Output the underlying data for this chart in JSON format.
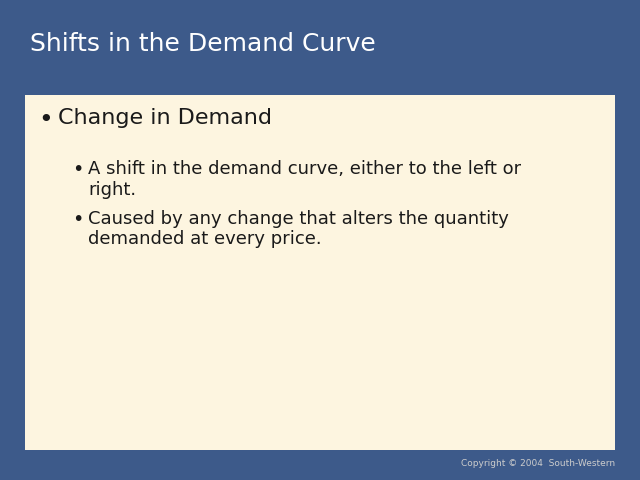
{
  "title": "Shifts in the Demand Curve",
  "title_color": "#ffffff",
  "title_fontsize": 18,
  "title_font": "sans-serif",
  "background_color": "#3d5a8a",
  "content_bg_color": "#fdf5e0",
  "text_color": "#1a1a1a",
  "bullet1_text": "Change in Demand",
  "bullet1_fontsize": 16,
  "sub_bullet1_line1": "A shift in the demand curve, either to the left or",
  "sub_bullet1_line2": "right.",
  "sub_bullet2_line1": "Caused by any change that alters the quantity",
  "sub_bullet2_line2": "demanded at every price.",
  "sub_fontsize": 13,
  "copyright_text": "Copyright © 2004  South-Western",
  "copyright_fontsize": 6.5,
  "copyright_color": "#cccccc"
}
